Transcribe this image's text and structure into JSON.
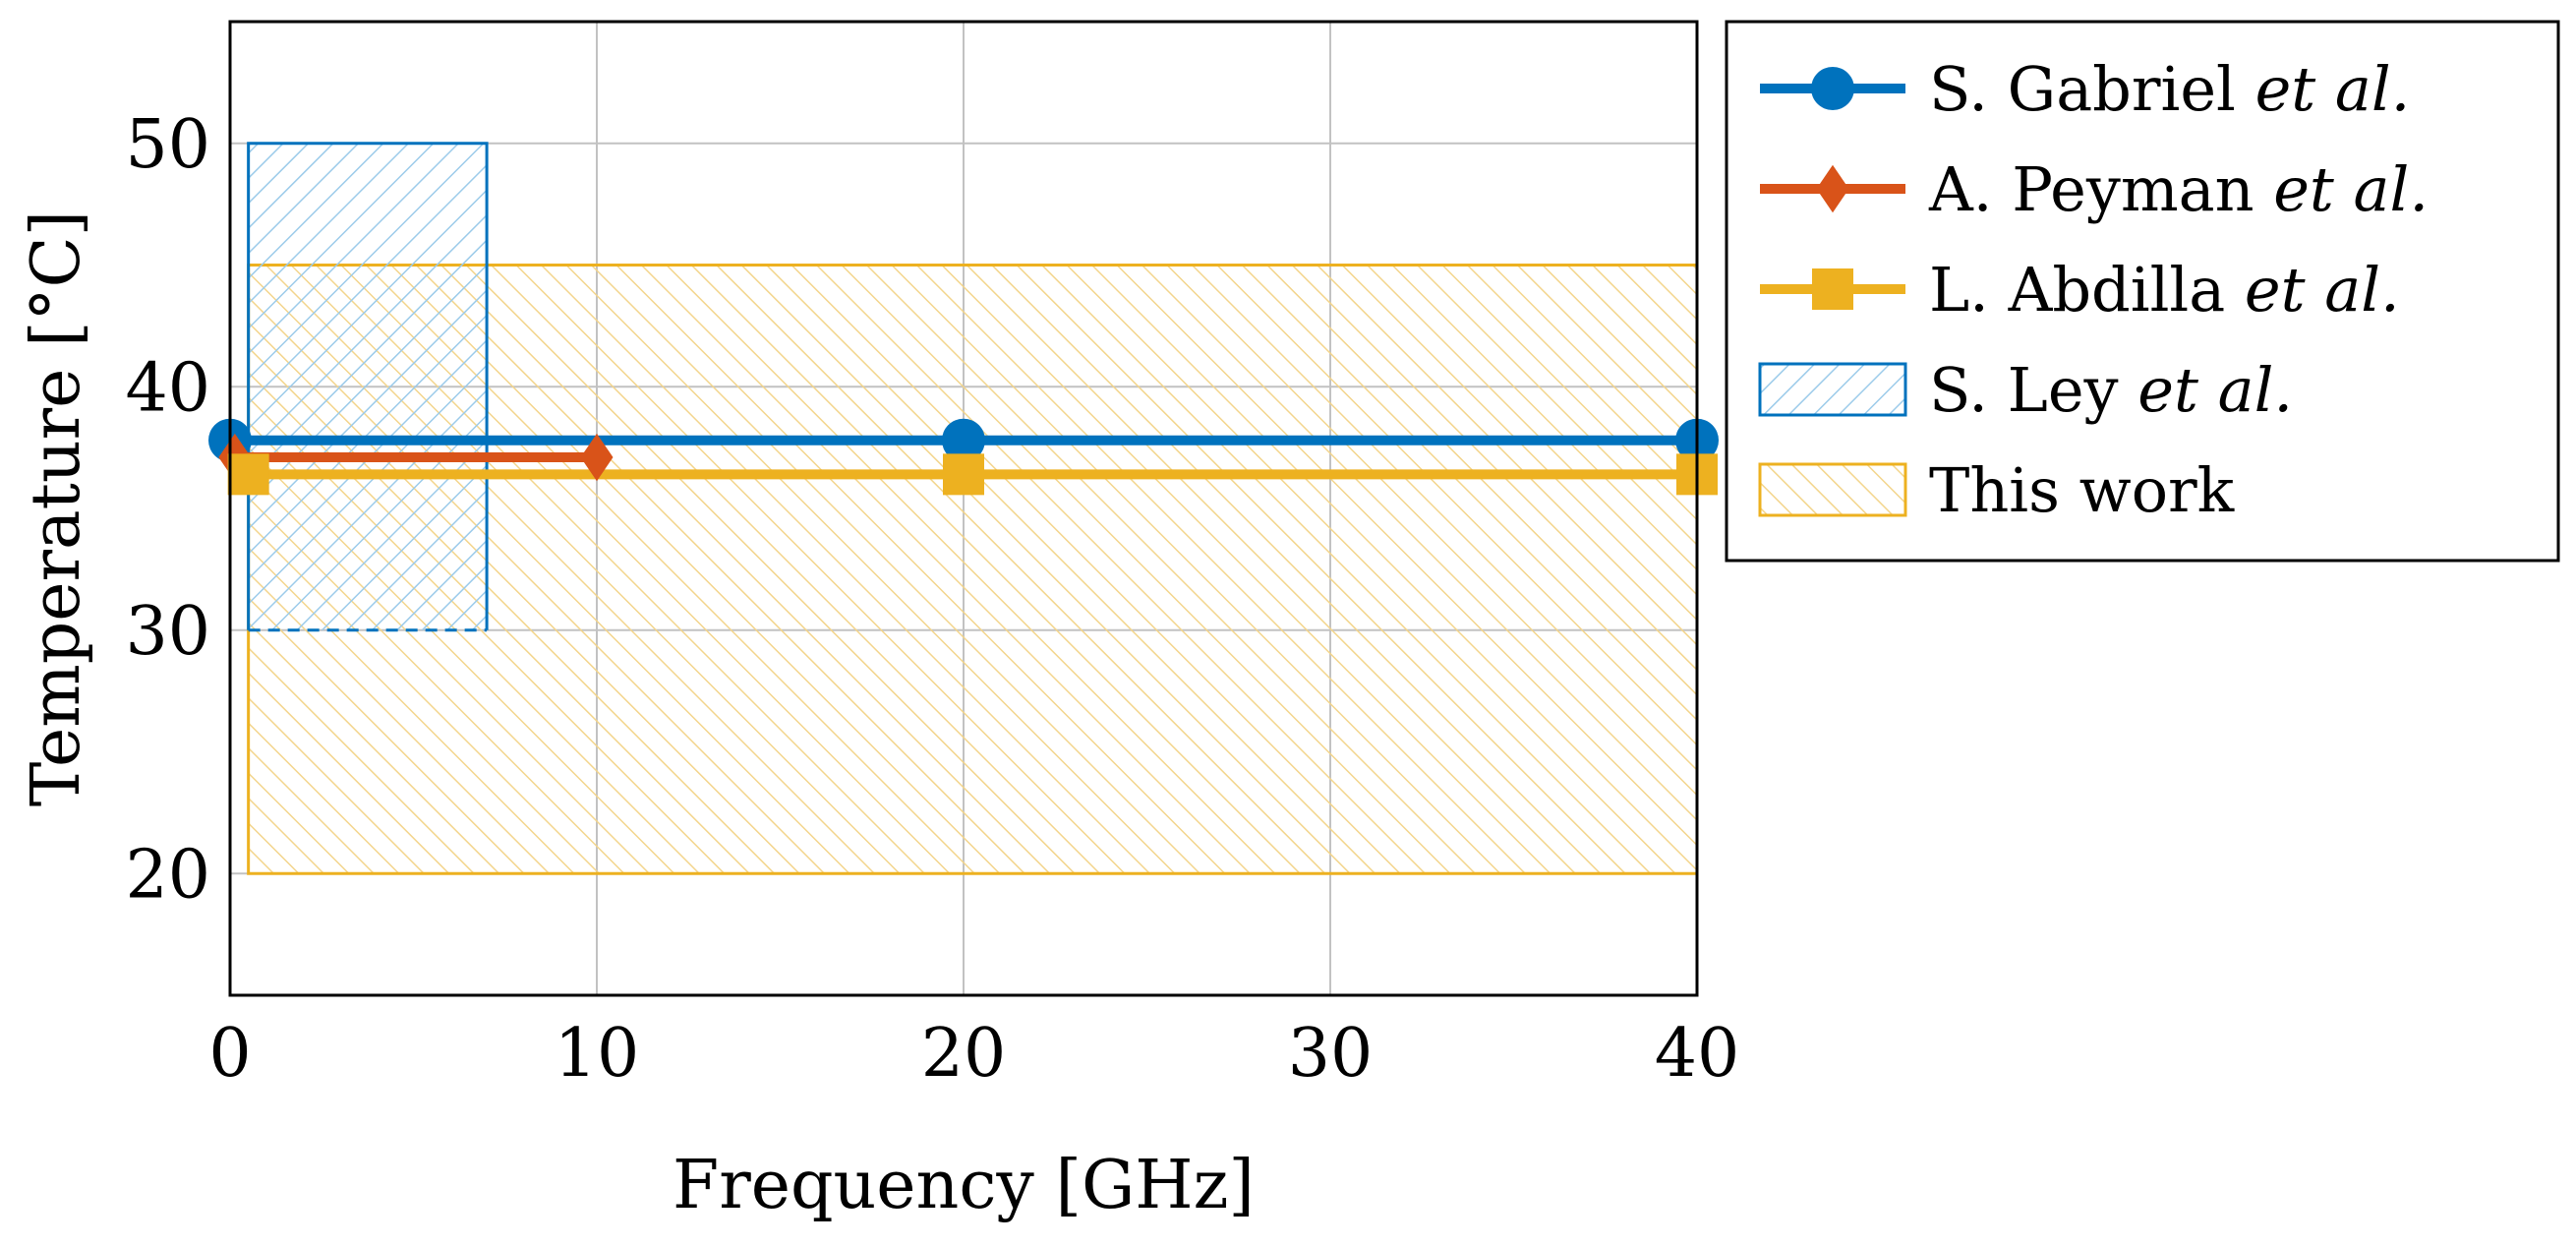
{
  "chart_data": {
    "type": "line",
    "xlabel": "Frequency [GHz]",
    "ylabel": "Temperature [°C]",
    "xlim": [
      0,
      40
    ],
    "ylim": [
      15,
      55
    ],
    "xticks": [
      0,
      10,
      20,
      30,
      40
    ],
    "yticks": [
      20,
      30,
      40,
      50
    ],
    "grid": true,
    "legend_position": "outside-right",
    "series": [
      {
        "name": "S. Gabriel",
        "name_suffix": "et al.",
        "type": "line",
        "marker": "circle",
        "color": "#0072BD",
        "x": [
          0,
          20,
          40
        ],
        "y": [
          37.8,
          37.8,
          37.8
        ]
      },
      {
        "name": "A. Peyman",
        "name_suffix": "et al.",
        "type": "line",
        "marker": "diamond",
        "color": "#D95319",
        "x": [
          0.13,
          10
        ],
        "y": [
          37.1,
          37.1
        ]
      },
      {
        "name": "L. Abdilla",
        "name_suffix": "et al.",
        "type": "line",
        "marker": "square",
        "color": "#EDB120",
        "x": [
          0.5,
          20,
          40
        ],
        "y": [
          36.4,
          36.4,
          36.4
        ]
      },
      {
        "name": "S. Ley",
        "name_suffix": "et al.",
        "type": "area",
        "hatch": "north-east",
        "dashed_bottom": true,
        "color": "#0072BD",
        "x_range": [
          0.5,
          7
        ],
        "y_range": [
          30,
          50
        ]
      },
      {
        "name": "This work",
        "name_suffix": "",
        "type": "area",
        "hatch": "north-west",
        "color": "#EDB120",
        "x_range": [
          0.5,
          40
        ],
        "y_range": [
          20,
          45
        ]
      }
    ]
  }
}
